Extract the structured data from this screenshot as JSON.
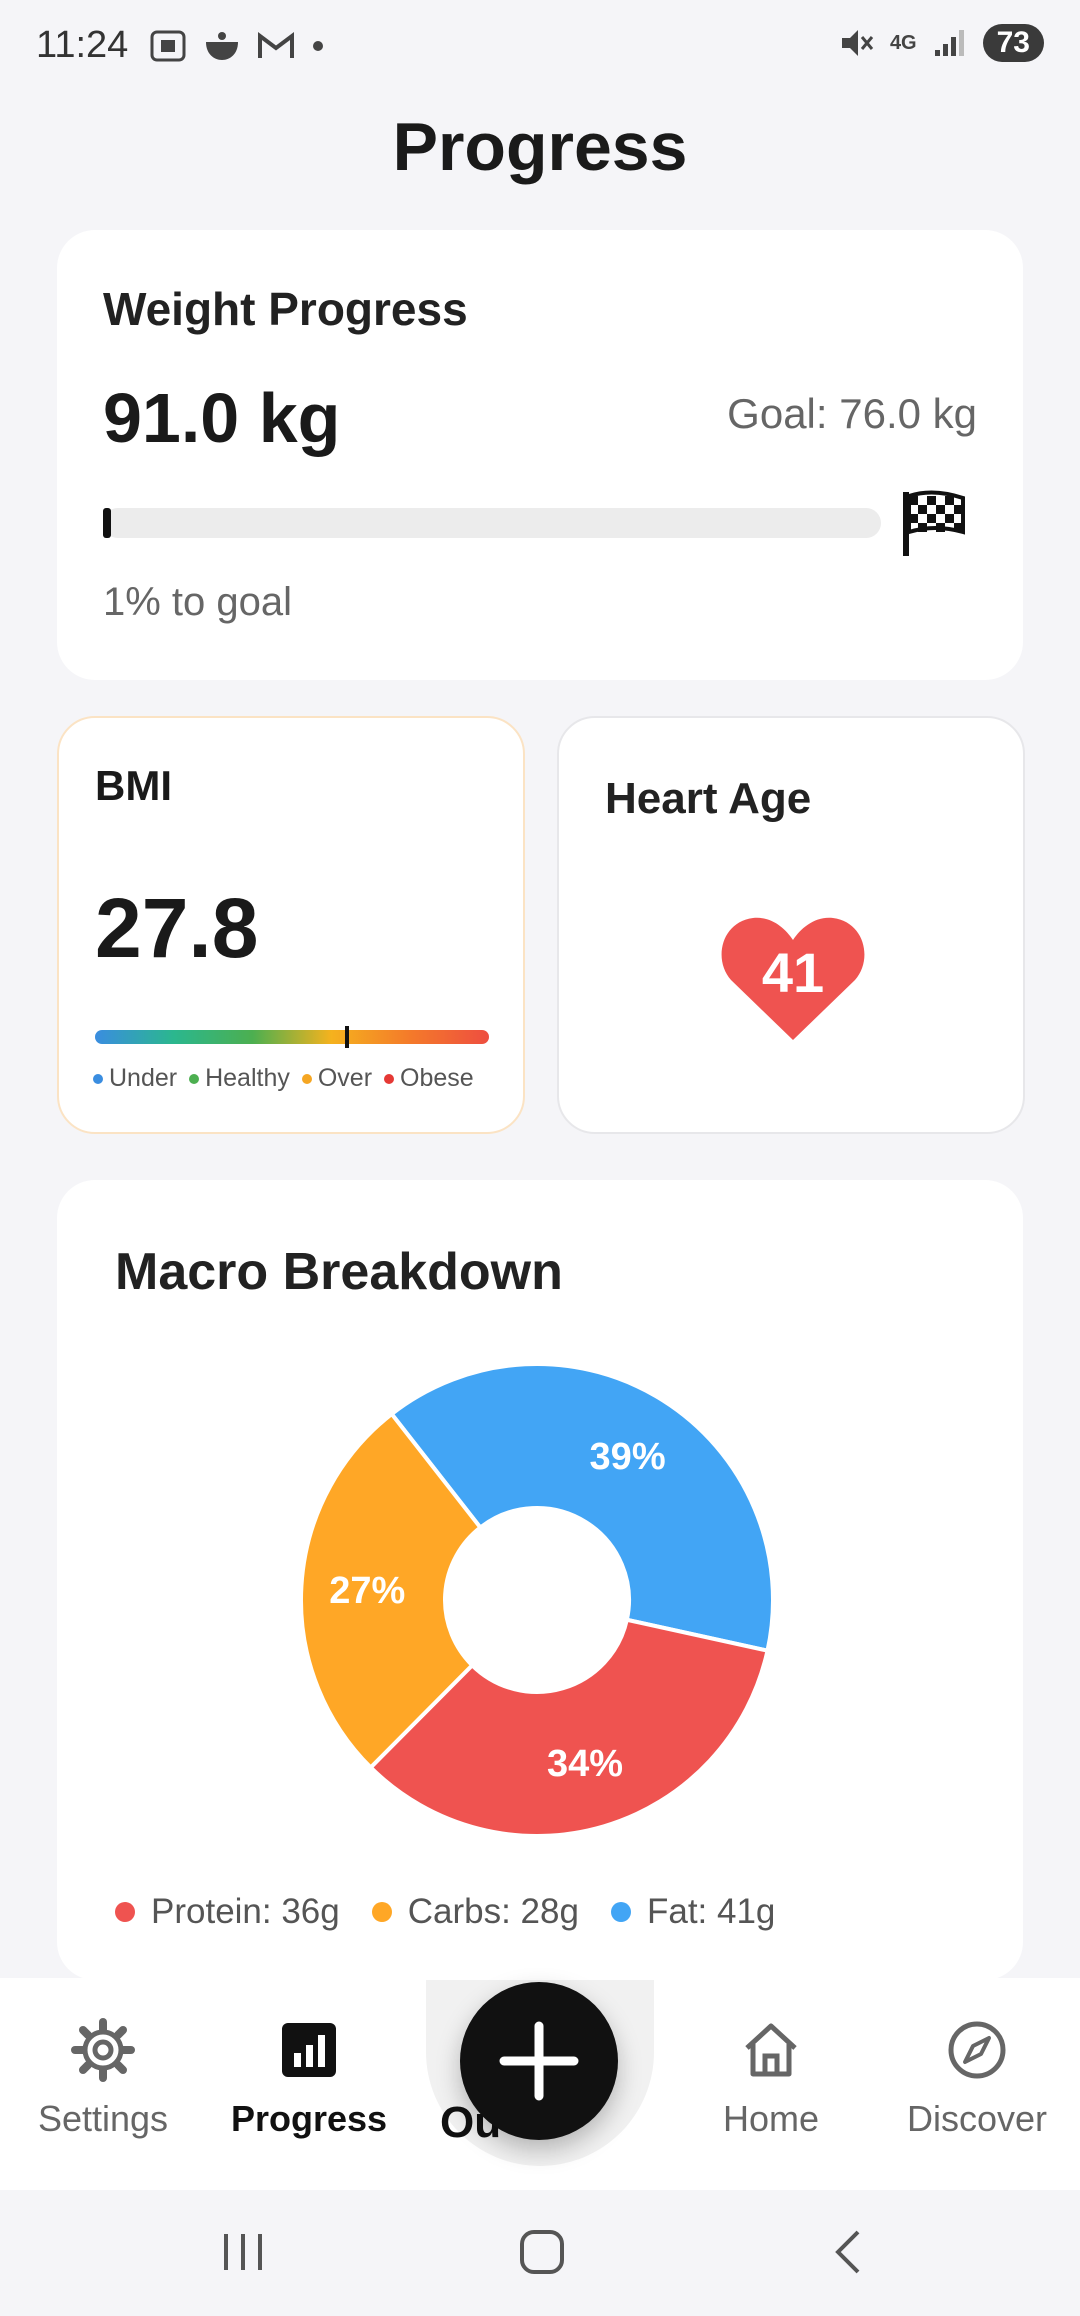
{
  "status_bar": {
    "time": "11:24",
    "network": "4G",
    "battery": "73"
  },
  "page": {
    "title": "Progress"
  },
  "weight": {
    "title": "Weight Progress",
    "current": "91.0 kg",
    "goal": "Goal: 76.0 kg",
    "progress_fraction": 0.01,
    "caption": "1% to goal"
  },
  "bmi": {
    "title": "BMI",
    "value": "27.8",
    "marker_fraction": 0.64,
    "legend": [
      {
        "label": "Under",
        "color": "#3a8de0"
      },
      {
        "label": "Healthy",
        "color": "#4caf50"
      },
      {
        "label": "Over",
        "color": "#f5a623"
      },
      {
        "label": "Obese",
        "color": "#e53935"
      }
    ]
  },
  "heart_age": {
    "title": "Heart Age",
    "value": "41",
    "color": "#ef5350"
  },
  "macros": {
    "title": "Macro Breakdown",
    "legend": [
      {
        "label": "Protein: 36g",
        "color": "#ef5350"
      },
      {
        "label": "Carbs: 28g",
        "color": "#ffa726"
      },
      {
        "label": "Fat: 41g",
        "color": "#42a5f5"
      }
    ]
  },
  "chart_data": {
    "type": "pie",
    "donut": true,
    "categories": [
      "Fat",
      "Protein",
      "Carbs"
    ],
    "values": [
      39,
      34,
      27
    ],
    "labels": [
      "39%",
      "34%",
      "27%"
    ],
    "colors": [
      "#42a5f5",
      "#ef5350",
      "#ffa726"
    ]
  },
  "nav": {
    "items": [
      {
        "label": "Settings",
        "icon": "gear-icon"
      },
      {
        "label": "Progress",
        "icon": "bar-chart-icon"
      },
      {
        "label": "Home",
        "icon": "home-icon"
      },
      {
        "label": "Discover",
        "icon": "compass-icon"
      }
    ],
    "fab_label": "Ou"
  }
}
